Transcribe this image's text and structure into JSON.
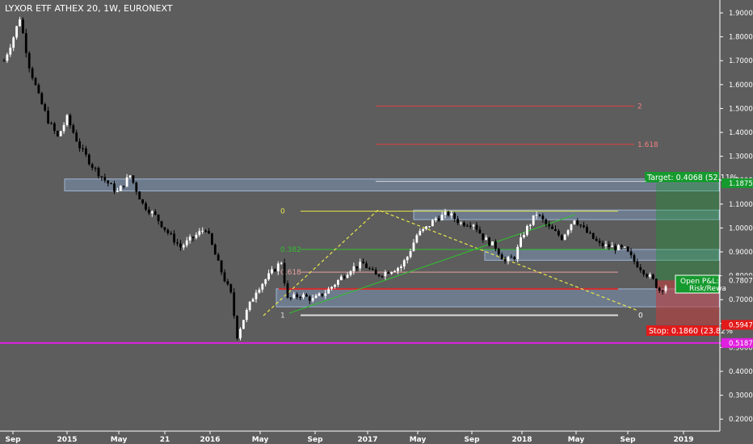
{
  "header": {
    "title": "LYXOR ETF ATHEX 20, 1W, EURONEXT"
  },
  "colors": {
    "background": "#5d5d5d",
    "candle_up": "#ffffff",
    "candle_down": "#000000",
    "zone": "#7b93b5",
    "fib_red": "#e04040",
    "fib_green": "#2fbf2f",
    "fib_yellow": "#e8e84a",
    "target_green": "#159a2e",
    "stop_red": "#e31a1a",
    "support_magenta": "#e020e0"
  },
  "chart_data": {
    "type": "candlestick",
    "title": "LYXOR ETF ATHEX 20, 1W, EURONEXT",
    "y_scale": "linear",
    "ylim": [
      0.18,
      1.94
    ],
    "grid": false,
    "x_tick_labels": [
      "Sep",
      "2015",
      "May",
      "21",
      "2016",
      "May",
      "Sep",
      "2017",
      "May",
      "Sep",
      "2018",
      "May",
      "Sep",
      "2019"
    ],
    "y_tick_labels": [
      "1.9000",
      "1.8000",
      "1.7000",
      "1.6000",
      "1.5000",
      "1.4000",
      "1.3000",
      "1.2000",
      "1.1000",
      "1.0000",
      "0.9000",
      "0.8000",
      "0.7000",
      "0.6000",
      "0.5000",
      "0.4000",
      "0.3000",
      "0.2000"
    ],
    "y_ticks": [
      1.9,
      1.8,
      1.7,
      1.6,
      1.5,
      1.4,
      1.3,
      1.2,
      1.1,
      1.0,
      0.9,
      0.8,
      0.7,
      0.6,
      0.5,
      0.4,
      0.3,
      0.2
    ],
    "price_path": [
      [
        0,
        1.7
      ],
      [
        3,
        1.8
      ],
      [
        5,
        1.88
      ],
      [
        8,
        1.68
      ],
      [
        11,
        1.55
      ],
      [
        14,
        1.45
      ],
      [
        17,
        1.38
      ],
      [
        20,
        1.46
      ],
      [
        24,
        1.34
      ],
      [
        28,
        1.26
      ],
      [
        32,
        1.2
      ],
      [
        36,
        1.15
      ],
      [
        40,
        1.22
      ],
      [
        44,
        1.1
      ],
      [
        48,
        1.05
      ],
      [
        52,
        0.98
      ],
      [
        56,
        0.92
      ],
      [
        60,
        0.96
      ],
      [
        64,
        1.0
      ],
      [
        68,
        0.85
      ],
      [
        72,
        0.72
      ],
      [
        74,
        0.55
      ],
      [
        76,
        0.62
      ],
      [
        80,
        0.74
      ],
      [
        84,
        0.8
      ],
      [
        88,
        0.86
      ],
      [
        90,
        0.7
      ],
      [
        94,
        0.72
      ],
      [
        98,
        0.7
      ],
      [
        102,
        0.73
      ],
      [
        106,
        0.78
      ],
      [
        110,
        0.83
      ],
      [
        114,
        0.85
      ],
      [
        118,
        0.8
      ],
      [
        122,
        0.82
      ],
      [
        126,
        0.84
      ],
      [
        128,
        0.88
      ],
      [
        131,
        0.97
      ],
      [
        134,
        1.0
      ],
      [
        137,
        1.04
      ],
      [
        141,
        1.06
      ],
      [
        145,
        1.02
      ],
      [
        149,
        1.02
      ],
      [
        152,
        0.96
      ],
      [
        156,
        0.92
      ],
      [
        159,
        0.86
      ],
      [
        162,
        0.88
      ],
      [
        165,
        0.98
      ],
      [
        169,
        1.06
      ],
      [
        173,
        1.0
      ],
      [
        177,
        0.96
      ],
      [
        181,
        1.04
      ],
      [
        185,
        0.98
      ],
      [
        189,
        0.93
      ],
      [
        193,
        0.92
      ],
      [
        197,
        0.91
      ],
      [
        200,
        0.86
      ],
      [
        203,
        0.82
      ],
      [
        206,
        0.78
      ],
      [
        208,
        0.74
      ],
      [
        210,
        0.76
      ]
    ],
    "price_levels": [
      {
        "name": "last",
        "value": 0.7807,
        "label": "0.7807",
        "color": "#ffffff"
      },
      {
        "name": "target",
        "value": 1.1875,
        "label": "1.1875",
        "color": "#159a2e"
      },
      {
        "name": "stop",
        "value": 0.5947,
        "label": "0.5947",
        "color": "#e31a1a"
      },
      {
        "name": "support",
        "value": 0.5187,
        "label": "0.5187",
        "color": "#e020e0"
      }
    ],
    "fib_extension": [
      {
        "level": "2",
        "price": 1.51
      },
      {
        "level": "1.618",
        "price": 1.35
      }
    ],
    "fib_retracement": [
      {
        "level": "0",
        "price": 1.07
      },
      {
        "level": "0.382",
        "price": 0.91
      },
      {
        "level": "0.618",
        "price": 0.815
      },
      {
        "level": "1",
        "price": 0.635
      }
    ],
    "trade": {
      "entry": 0.7807,
      "target_label": "Target: 0.4068 (52.11%",
      "stop_label": "Stop: 0.1860 (23.82%",
      "pnl_label": "Open P&L: 0.",
      "rr_label": "Risk/Rewa"
    },
    "zones": [
      {
        "from": 1.155,
        "to": 1.205
      },
      {
        "from": 1.035,
        "to": 1.075
      },
      {
        "from": 0.865,
        "to": 0.91
      },
      {
        "from": 0.67,
        "to": 0.745
      }
    ]
  }
}
